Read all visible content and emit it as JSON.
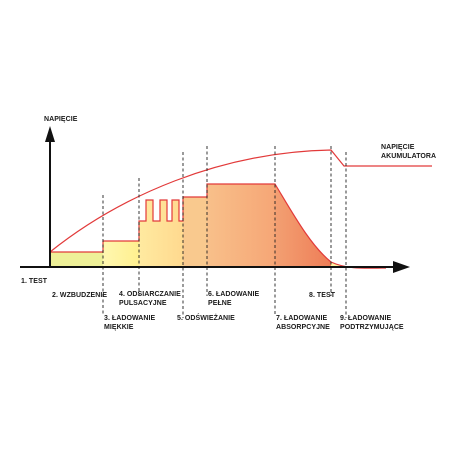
{
  "colors": {
    "curve": "#e23a3a",
    "axis": "#111111",
    "zone_1": "#f1f29a",
    "zone_2": "#fff6a8",
    "zone_3": "#ffe199",
    "zone_4": "#fbd090",
    "zone_5": "#f7b47e",
    "zone_6": "#f19467",
    "zone_7": "#fff2a0"
  },
  "labels": {
    "y_axis": "NAPIĘCIE",
    "battery_voltage": "NAPIĘCIE\nAKUMULATORA",
    "s1": "1. TEST",
    "s2": "2. WZBUDZENIE",
    "s3": "3. ŁADOWANIE\nMIĘKKIE",
    "s4": "4. ODSIARCZANIE\nPULSACYJNE",
    "s5": "5. ODŚWIEŻANIE",
    "s6": "6. ŁADOWANIE\nPEŁNE",
    "s7": "7. ŁADOWANIE\nABSORPCYJNE",
    "s8": "8. TEST",
    "s9": "9. ŁADOWANIE\nPODTRZYMUJĄCE"
  }
}
